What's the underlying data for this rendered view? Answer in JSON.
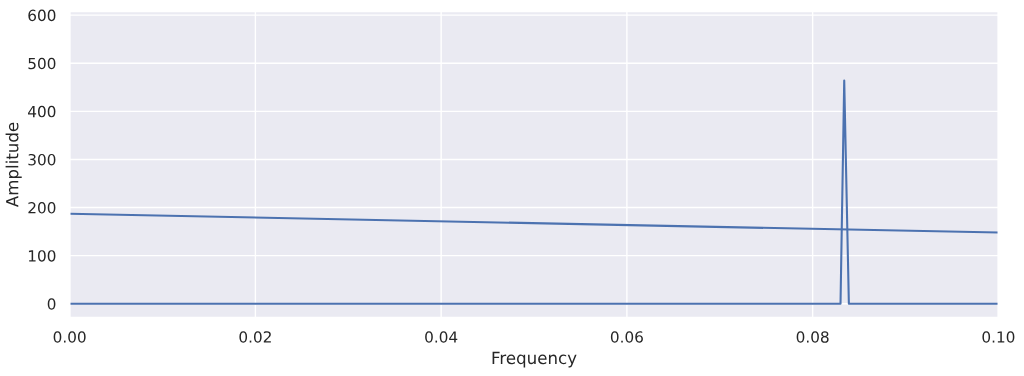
{
  "chart_data": {
    "type": "line",
    "xlabel": "Frequency",
    "ylabel": "Amplitude",
    "series": [
      {
        "color": "#4c72b0",
        "x": [
          0.0,
          0.083,
          0.0834,
          0.0839,
          0.1
        ],
        "values": [
          0,
          0,
          464,
          0,
          0
        ]
      },
      {
        "color": "#4c72b0",
        "x": [
          0.0,
          0.1
        ],
        "values": [
          187,
          148
        ]
      }
    ],
    "xlim": [
      0,
      0.1
    ],
    "xticks": [
      {
        "value": 0,
        "label": "0.00"
      },
      {
        "value": 0.02,
        "label": "0.02"
      },
      {
        "value": 0.04,
        "label": "0.04"
      },
      {
        "value": 0.06,
        "label": "0.06"
      },
      {
        "value": 0.08,
        "label": "0.08"
      },
      {
        "value": 0.1,
        "label": "0.10"
      }
    ],
    "ylim": [
      -29,
      608
    ],
    "yticks": [
      0,
      100,
      200,
      300,
      400,
      500,
      600
    ],
    "grid": true
  }
}
